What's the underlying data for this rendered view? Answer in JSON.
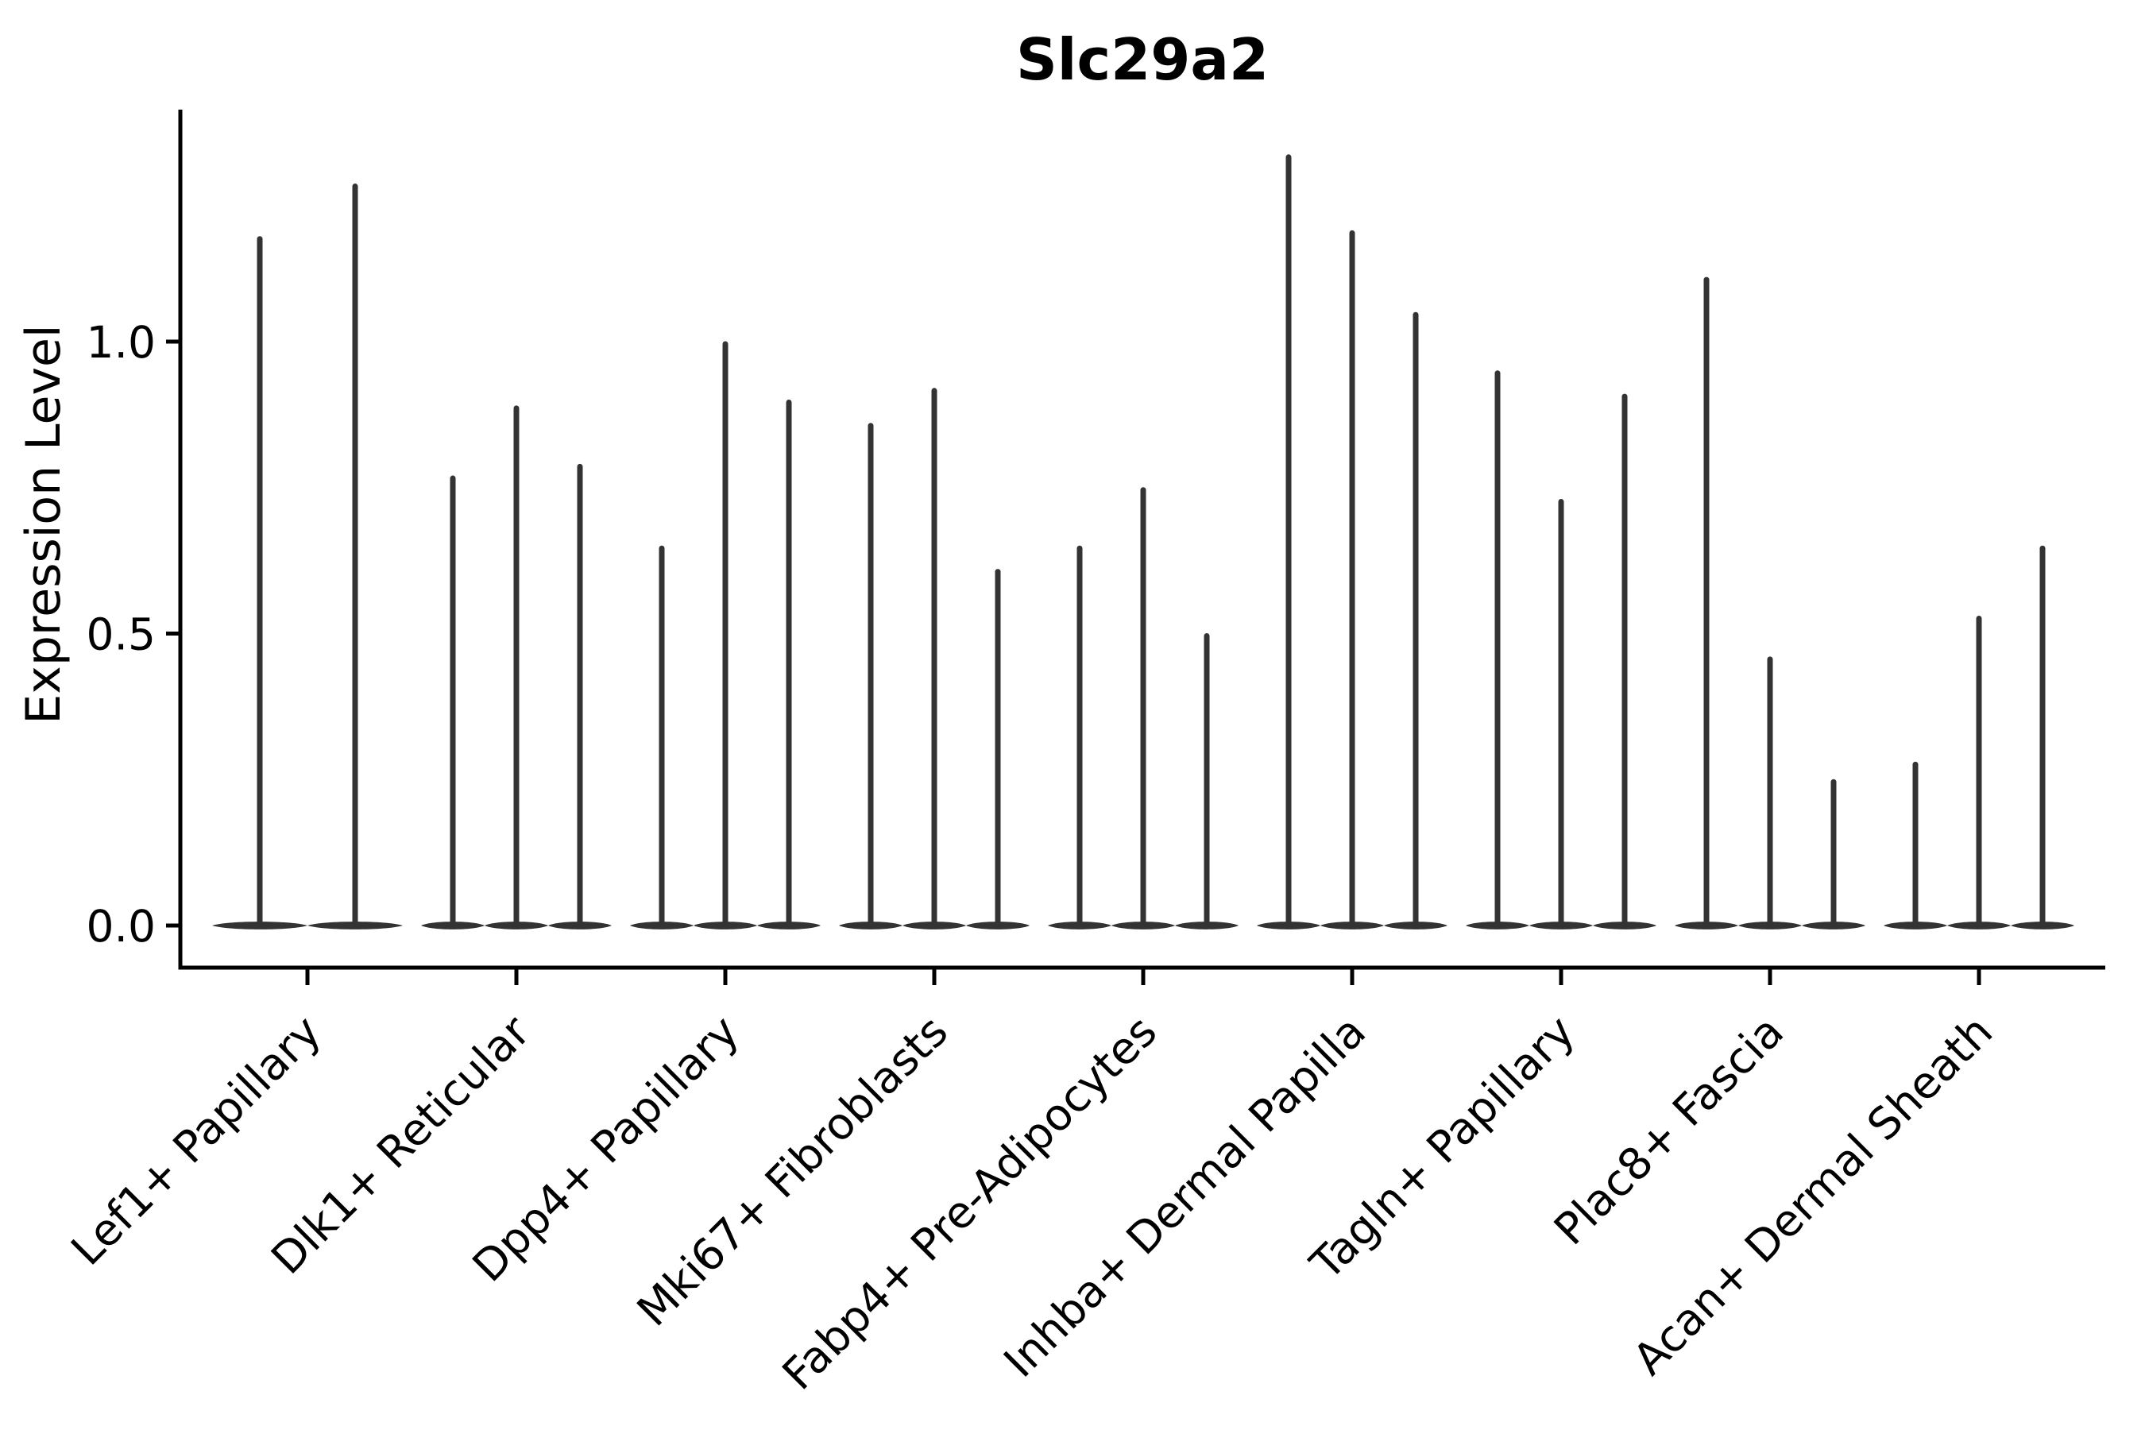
{
  "title": "Slc29a2",
  "y_axis": {
    "label": "Expression Level",
    "tick_labels": [
      "0.0",
      "0.5",
      "1.0"
    ]
  },
  "chart_data": {
    "type": "violin",
    "title": "Slc29a2",
    "xlabel": "",
    "ylabel": "Expression Level",
    "ylim": [
      -0.07,
      1.39
    ],
    "yticks": [
      0.0,
      0.5,
      1.0
    ],
    "grid": false,
    "legend": "none",
    "background": "#ffffff",
    "description": "Violin plot of Slc29a2 expression; each category holds multiple needle-thin violins (dense mass at 0 with a thin spike up to the max expression value).",
    "categories": [
      "Lef1+ Papillary",
      "Dlk1+ Reticular",
      "Dpp4+ Papillary",
      "Mki67+ Fibroblasts",
      "Fabp4+ Pre-Adipocytes",
      "Inhba+ Dermal Papilla",
      "Tagln+ Papillary",
      "Plac8+ Fascia",
      "Acan+ Dermal Sheath"
    ],
    "groups": [
      {
        "category": "Lef1+ Papillary",
        "violin_peaks": [
          1.18,
          1.27
        ]
      },
      {
        "category": "Dlk1+ Reticular",
        "violin_peaks": [
          0.77,
          0.89,
          0.79
        ]
      },
      {
        "category": "Dpp4+ Papillary",
        "violin_peaks": [
          0.65,
          1.0,
          0.9
        ]
      },
      {
        "category": "Mki67+ Fibroblasts",
        "violin_peaks": [
          0.86,
          0.92,
          0.61
        ]
      },
      {
        "category": "Fabp4+ Pre-Adipocytes",
        "violin_peaks": [
          0.65,
          0.75,
          0.5
        ]
      },
      {
        "category": "Inhba+ Dermal Papilla",
        "violin_peaks": [
          1.32,
          1.19,
          1.05
        ]
      },
      {
        "category": "Tagln+ Papillary",
        "violin_peaks": [
          0.95,
          0.73,
          0.91
        ]
      },
      {
        "category": "Plac8+ Fascia",
        "violin_peaks": [
          1.11,
          0.46,
          0.25
        ]
      },
      {
        "category": "Acan+ Dermal Sheath",
        "violin_peaks": [
          0.28,
          0.53,
          0.65
        ]
      }
    ]
  },
  "style": {
    "violin_color": "#333333",
    "axis_color": "#000000",
    "text_color": "#000000",
    "background": "#ffffff"
  }
}
